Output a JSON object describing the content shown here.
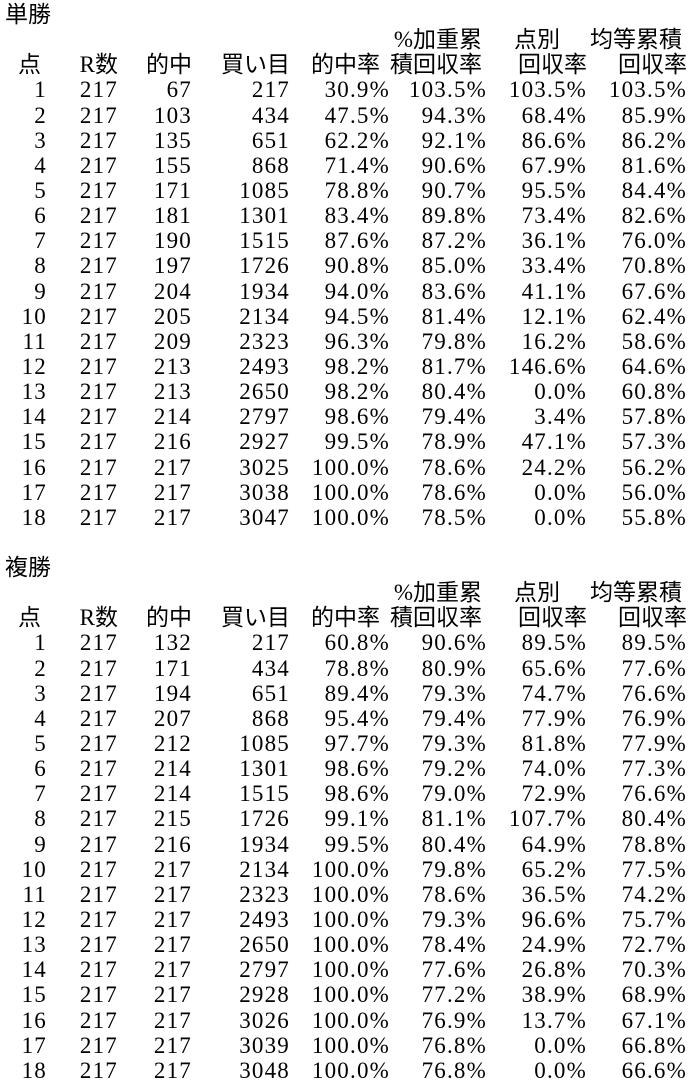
{
  "page": {
    "background_color": "#ffffff",
    "text_color": "#000000"
  },
  "tables": [
    {
      "title": "単勝",
      "columns_top": [
        "",
        "",
        "",
        "",
        "",
        "%加重累",
        "点別",
        "均等累積"
      ],
      "columns": [
        "点",
        "R数",
        "的中",
        "買い目",
        "的中率",
        "積回収率",
        "回収率",
        "回収率"
      ],
      "rows": [
        [
          1,
          217,
          67,
          217,
          "30.9%",
          "103.5%",
          "103.5%",
          "103.5%"
        ],
        [
          2,
          217,
          103,
          434,
          "47.5%",
          "94.3%",
          "68.4%",
          "85.9%"
        ],
        [
          3,
          217,
          135,
          651,
          "62.2%",
          "92.1%",
          "86.6%",
          "86.2%"
        ],
        [
          4,
          217,
          155,
          868,
          "71.4%",
          "90.6%",
          "67.9%",
          "81.6%"
        ],
        [
          5,
          217,
          171,
          1085,
          "78.8%",
          "90.7%",
          "95.5%",
          "84.4%"
        ],
        [
          6,
          217,
          181,
          1301,
          "83.4%",
          "89.8%",
          "73.4%",
          "82.6%"
        ],
        [
          7,
          217,
          190,
          1515,
          "87.6%",
          "87.2%",
          "36.1%",
          "76.0%"
        ],
        [
          8,
          217,
          197,
          1726,
          "90.8%",
          "85.0%",
          "33.4%",
          "70.8%"
        ],
        [
          9,
          217,
          204,
          1934,
          "94.0%",
          "83.6%",
          "41.1%",
          "67.6%"
        ],
        [
          10,
          217,
          205,
          2134,
          "94.5%",
          "81.4%",
          "12.1%",
          "62.4%"
        ],
        [
          11,
          217,
          209,
          2323,
          "96.3%",
          "79.8%",
          "16.2%",
          "58.6%"
        ],
        [
          12,
          217,
          213,
          2493,
          "98.2%",
          "81.7%",
          "146.6%",
          "64.6%"
        ],
        [
          13,
          217,
          213,
          2650,
          "98.2%",
          "80.4%",
          "0.0%",
          "60.8%"
        ],
        [
          14,
          217,
          214,
          2797,
          "98.6%",
          "79.4%",
          "3.4%",
          "57.8%"
        ],
        [
          15,
          217,
          216,
          2927,
          "99.5%",
          "78.9%",
          "47.1%",
          "57.3%"
        ],
        [
          16,
          217,
          217,
          3025,
          "100.0%",
          "78.6%",
          "24.2%",
          "56.2%"
        ],
        [
          17,
          217,
          217,
          3038,
          "100.0%",
          "78.6%",
          "0.0%",
          "56.0%"
        ],
        [
          18,
          217,
          217,
          3047,
          "100.0%",
          "78.5%",
          "0.0%",
          "55.8%"
        ]
      ]
    },
    {
      "title": "複勝",
      "columns_top": [
        "",
        "",
        "",
        "",
        "",
        "%加重累",
        "点別",
        "均等累積"
      ],
      "columns": [
        "点",
        "R数",
        "的中",
        "買い目",
        "的中率",
        "積回収率",
        "回収率",
        "回収率"
      ],
      "rows": [
        [
          1,
          217,
          132,
          217,
          "60.8%",
          "90.6%",
          "89.5%",
          "89.5%"
        ],
        [
          2,
          217,
          171,
          434,
          "78.8%",
          "80.9%",
          "65.6%",
          "77.6%"
        ],
        [
          3,
          217,
          194,
          651,
          "89.4%",
          "79.3%",
          "74.7%",
          "76.6%"
        ],
        [
          4,
          217,
          207,
          868,
          "95.4%",
          "79.4%",
          "77.9%",
          "76.9%"
        ],
        [
          5,
          217,
          212,
          1085,
          "97.7%",
          "79.3%",
          "81.8%",
          "77.9%"
        ],
        [
          6,
          217,
          214,
          1301,
          "98.6%",
          "79.2%",
          "74.0%",
          "77.3%"
        ],
        [
          7,
          217,
          214,
          1515,
          "98.6%",
          "79.0%",
          "72.9%",
          "76.6%"
        ],
        [
          8,
          217,
          215,
          1726,
          "99.1%",
          "81.1%",
          "107.7%",
          "80.4%"
        ],
        [
          9,
          217,
          216,
          1934,
          "99.5%",
          "80.4%",
          "64.9%",
          "78.8%"
        ],
        [
          10,
          217,
          217,
          2134,
          "100.0%",
          "79.8%",
          "65.2%",
          "77.5%"
        ],
        [
          11,
          217,
          217,
          2323,
          "100.0%",
          "78.6%",
          "36.5%",
          "74.2%"
        ],
        [
          12,
          217,
          217,
          2493,
          "100.0%",
          "79.3%",
          "96.6%",
          "75.7%"
        ],
        [
          13,
          217,
          217,
          2650,
          "100.0%",
          "78.4%",
          "24.9%",
          "72.7%"
        ],
        [
          14,
          217,
          217,
          2797,
          "100.0%",
          "77.6%",
          "26.8%",
          "70.3%"
        ],
        [
          15,
          217,
          217,
          2928,
          "100.0%",
          "77.2%",
          "38.9%",
          "68.9%"
        ],
        [
          16,
          217,
          217,
          3026,
          "100.0%",
          "76.9%",
          "13.7%",
          "67.1%"
        ],
        [
          17,
          217,
          217,
          3039,
          "100.0%",
          "76.8%",
          "0.0%",
          "66.8%"
        ],
        [
          18,
          217,
          217,
          3048,
          "100.0%",
          "76.8%",
          "0.0%",
          "66.6%"
        ]
      ]
    }
  ]
}
